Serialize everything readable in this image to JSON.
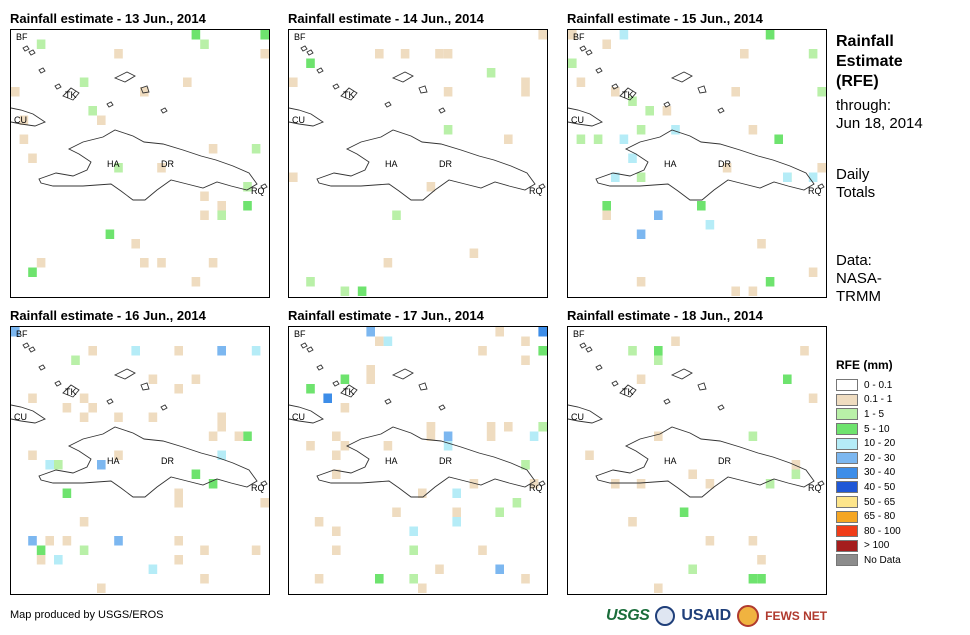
{
  "panels": [
    {
      "title": "Rainfall estimate - 13 Jun., 2014",
      "seed": 13,
      "density": 0.55
    },
    {
      "title": "Rainfall estimate - 14 Jun., 2014",
      "seed": 14,
      "density": 0.35
    },
    {
      "title": "Rainfall estimate - 15 Jun., 2014",
      "seed": 15,
      "density": 0.7
    },
    {
      "title": "Rainfall estimate - 16 Jun., 2014",
      "seed": 16,
      "density": 0.85
    },
    {
      "title": "Rainfall estimate - 17 Jun., 2014",
      "seed": 17,
      "density": 0.9
    },
    {
      "title": "Rainfall estimate - 18 Jun., 2014",
      "seed": 18,
      "density": 0.45
    }
  ],
  "map_labels": {
    "bf": "BF",
    "tk": "TK",
    "cu": "CU",
    "ha": "HA",
    "dr": "DR",
    "rq": "RQ"
  },
  "side": {
    "title_lines": [
      "Rainfall",
      "Estimate",
      "(RFE)"
    ],
    "through_label": "through:",
    "through_date": "Jun 18, 2014",
    "totals_lines": [
      "Daily",
      "Totals"
    ],
    "data_lines": [
      "Data:",
      "NASA-",
      "TRMM"
    ]
  },
  "legend": {
    "title": "RFE (mm)",
    "items": [
      {
        "label": "0 - 0.1",
        "color": "#ffffff"
      },
      {
        "label": "0.1 - 1",
        "color": "#efdcc0"
      },
      {
        "label": "1 - 5",
        "color": "#b9f0a8"
      },
      {
        "label": "5 - 10",
        "color": "#6ee36e"
      },
      {
        "label": "10 - 20",
        "color": "#b5ecf7"
      },
      {
        "label": "20 - 30",
        "color": "#7cb7f0"
      },
      {
        "label": "30 - 40",
        "color": "#3d8de8"
      },
      {
        "label": "40 - 50",
        "color": "#1f57d6"
      },
      {
        "label": "50 - 65",
        "color": "#fde58b"
      },
      {
        "label": "65 - 80",
        "color": "#f5a623"
      },
      {
        "label": "80 - 100",
        "color": "#f03c18"
      },
      {
        "label": "> 100",
        "color": "#a51d1d"
      },
      {
        "label": "No Data",
        "color": "#8c8c8c"
      }
    ]
  },
  "footer": {
    "credit": "Map produced by USGS/EROS",
    "logo_usgs": "USGS",
    "logo_usaid": "USAID",
    "logo_fews": "FEWS NET"
  }
}
